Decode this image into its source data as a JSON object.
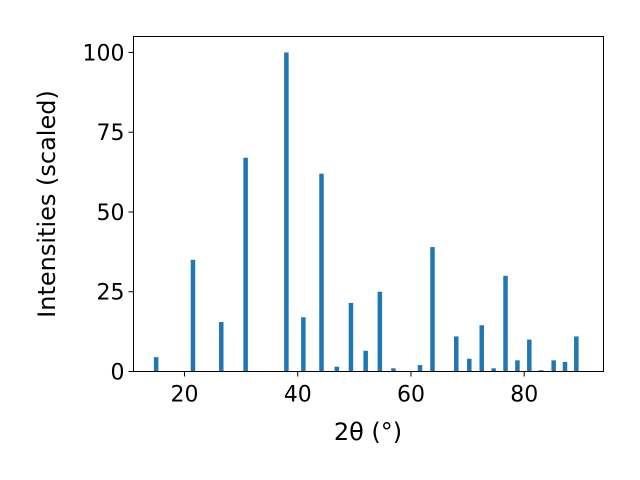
{
  "chart_data": {
    "type": "bar",
    "xlabel": "2θ (°)",
    "ylabel": "Intensities (scaled)",
    "xlim": [
      11,
      94
    ],
    "ylim": [
      0,
      105
    ],
    "grid": false,
    "bar_color": "#1f77b4",
    "x_ticks": [
      20,
      40,
      60,
      80
    ],
    "y_ticks": [
      0,
      25,
      50,
      75,
      100
    ],
    "x": [
      15.0,
      21.5,
      26.5,
      30.8,
      38.0,
      41.0,
      44.2,
      46.9,
      49.4,
      52.0,
      54.5,
      56.9,
      61.6,
      63.8,
      68.0,
      70.3,
      72.5,
      74.6,
      76.7,
      78.8,
      80.9,
      83.0,
      85.2,
      87.2,
      89.2
    ],
    "values": [
      4.5,
      35,
      15.5,
      67,
      100,
      17,
      62,
      1.5,
      21.5,
      6.5,
      25,
      1,
      2,
      39,
      11,
      4,
      14.5,
      1,
      30,
      3.5,
      10,
      0.4,
      3.5,
      3,
      11
    ]
  }
}
